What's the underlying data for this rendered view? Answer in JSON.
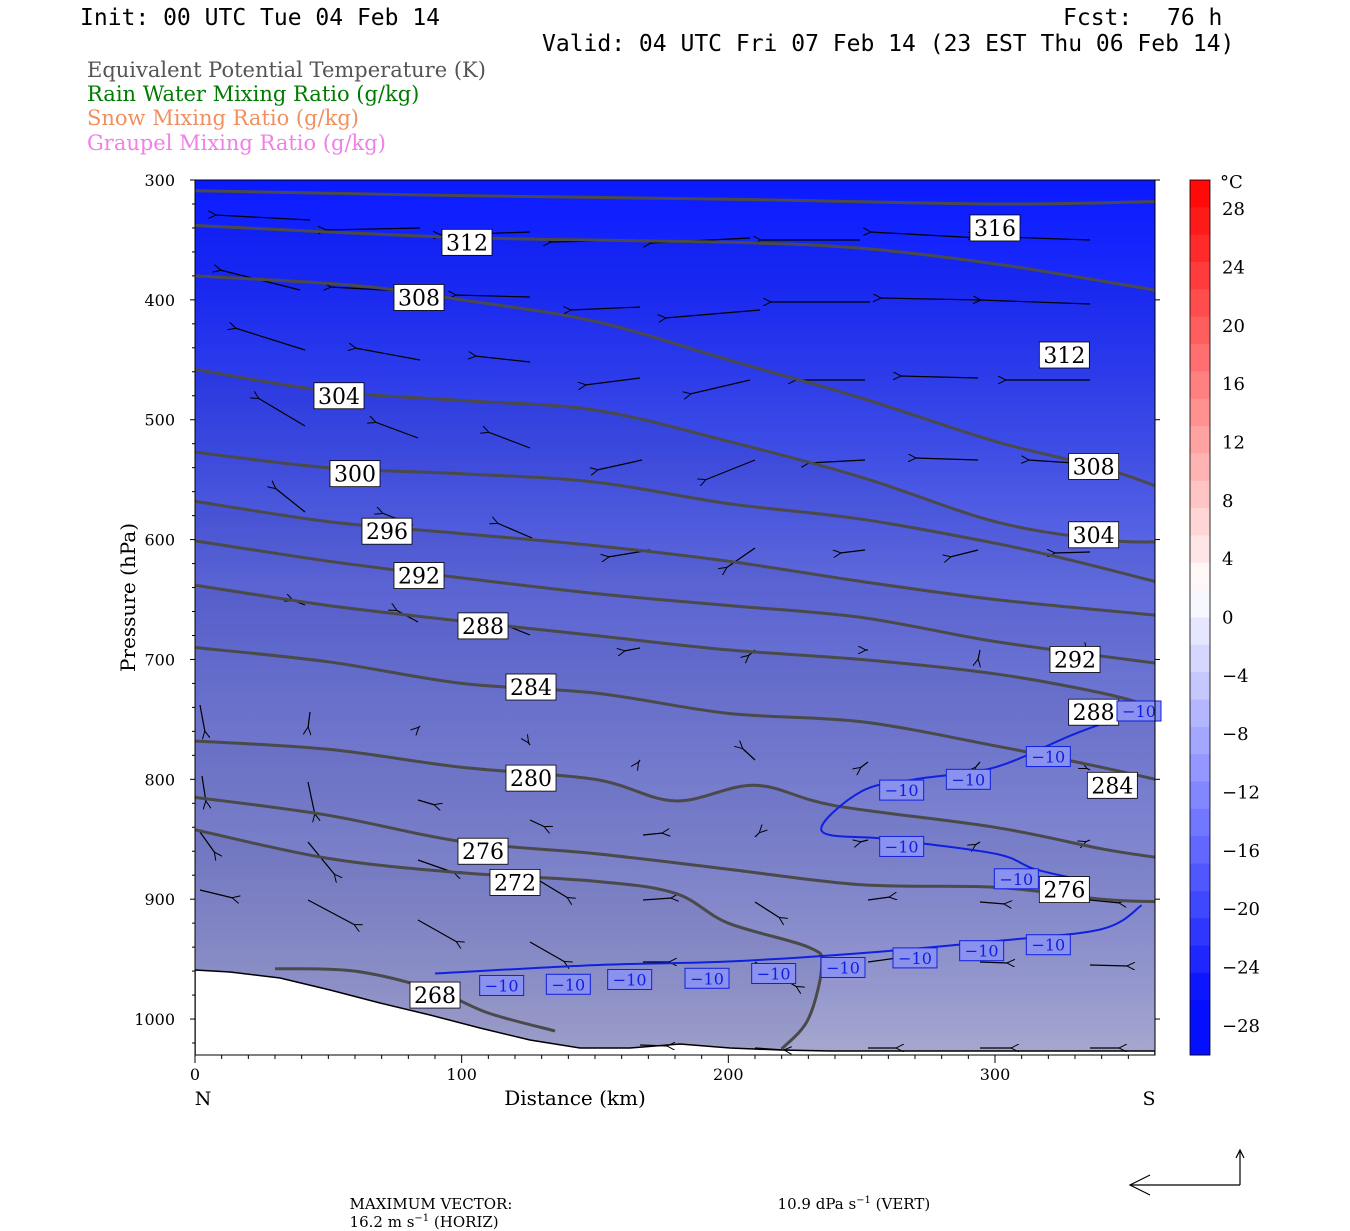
{
  "header": {
    "init": "Init: 00 UTC Tue 04 Feb 14",
    "fcst_label": "Fcst:",
    "fcst_value": "76 h",
    "valid": "Valid: 04 UTC Fri 07 Feb 14 (23 EST Thu 06 Feb 14)"
  },
  "legend": [
    {
      "label": "Equivalent Potential Temperature (K)",
      "color": "#555555"
    },
    {
      "label": "Rain Water Mixing Ratio (g/kg)",
      "color": "#007a00"
    },
    {
      "label": "Snow Mixing Ratio (g/kg)",
      "color": "#f09060"
    },
    {
      "label": "Graupel Mixing Ratio (g/kg)",
      "color": "#f080e8"
    }
  ],
  "chart_data": {
    "type": "cross-section",
    "xlabel": "Distance (km)",
    "ylabel": "Pressure (hPa)",
    "x_ticks": [
      0,
      100,
      200,
      300
    ],
    "y_ticks": [
      300,
      400,
      500,
      600,
      700,
      800,
      900,
      1000
    ],
    "xlim": [
      0,
      360
    ],
    "ylim": [
      300,
      1030
    ],
    "left_end_label": "N",
    "right_end_label": "S",
    "colorbar": {
      "unit": "°C",
      "labels": [
        "28",
        "24",
        "20",
        "16",
        "12",
        "8",
        "4",
        "0",
        "−4",
        "−8",
        "−12",
        "−16",
        "−20",
        "−24",
        "−28"
      ]
    },
    "theta_e_contours": [
      {
        "level": 316,
        "points": [
          [
            0,
            309
          ],
          [
            100,
            313
          ],
          [
            200,
            316
          ],
          [
            300,
            320
          ],
          [
            360,
            318
          ]
        ]
      },
      {
        "level": 312,
        "points": [
          [
            0,
            338
          ],
          [
            100,
            348
          ],
          [
            200,
            352
          ],
          [
            250,
            357
          ],
          [
            300,
            370
          ],
          [
            350,
            388
          ],
          [
            360,
            392
          ]
        ]
      },
      {
        "level": 308,
        "points": [
          [
            0,
            380
          ],
          [
            60,
            388
          ],
          [
            100,
            400
          ],
          [
            150,
            418
          ],
          [
            200,
            450
          ],
          [
            250,
            482
          ],
          [
            300,
            518
          ],
          [
            340,
            540
          ],
          [
            360,
            555
          ]
        ]
      },
      {
        "level": 304,
        "points": [
          [
            0,
            458
          ],
          [
            50,
            476
          ],
          [
            100,
            484
          ],
          [
            150,
            492
          ],
          [
            200,
            518
          ],
          [
            250,
            548
          ],
          [
            300,
            585
          ],
          [
            340,
            600
          ],
          [
            360,
            602
          ]
        ]
      },
      {
        "level": 300,
        "points": [
          [
            0,
            527
          ],
          [
            50,
            540
          ],
          [
            100,
            545
          ],
          [
            150,
            552
          ],
          [
            200,
            570
          ],
          [
            250,
            583
          ],
          [
            300,
            603
          ],
          [
            330,
            618
          ],
          [
            360,
            635
          ]
        ]
      },
      {
        "level": 296,
        "points": [
          [
            0,
            568
          ],
          [
            50,
            585
          ],
          [
            100,
            595
          ],
          [
            150,
            605
          ],
          [
            200,
            618
          ],
          [
            250,
            635
          ],
          [
            300,
            650
          ],
          [
            360,
            663
          ]
        ]
      },
      {
        "level": 292,
        "points": [
          [
            0,
            601
          ],
          [
            50,
            618
          ],
          [
            100,
            632
          ],
          [
            150,
            645
          ],
          [
            200,
            655
          ],
          [
            250,
            665
          ],
          [
            300,
            685
          ],
          [
            360,
            703
          ]
        ]
      },
      {
        "level": 288,
        "points": [
          [
            0,
            638
          ],
          [
            50,
            655
          ],
          [
            100,
            668
          ],
          [
            150,
            680
          ],
          [
            200,
            692
          ],
          [
            250,
            700
          ],
          [
            300,
            712
          ],
          [
            340,
            728
          ],
          [
            360,
            740
          ]
        ]
      },
      {
        "level": 284,
        "points": [
          [
            0,
            690
          ],
          [
            50,
            702
          ],
          [
            100,
            720
          ],
          [
            150,
            728
          ],
          [
            200,
            745
          ],
          [
            250,
            752
          ],
          [
            300,
            772
          ],
          [
            340,
            790
          ],
          [
            360,
            800
          ]
        ]
      },
      {
        "level": 280,
        "points": [
          [
            0,
            768
          ],
          [
            50,
            775
          ],
          [
            100,
            790
          ],
          [
            150,
            800
          ],
          [
            180,
            818
          ],
          [
            210,
            805
          ],
          [
            240,
            822
          ],
          [
            300,
            840
          ],
          [
            340,
            858
          ],
          [
            360,
            865
          ]
        ]
      },
      {
        "level": 276,
        "points": [
          [
            0,
            815
          ],
          [
            50,
            830
          ],
          [
            100,
            852
          ],
          [
            150,
            862
          ],
          [
            200,
            875
          ],
          [
            250,
            888
          ],
          [
            300,
            890
          ],
          [
            340,
            900
          ],
          [
            360,
            902
          ]
        ]
      },
      {
        "level": 272,
        "points": [
          [
            0,
            842
          ],
          [
            50,
            866
          ],
          [
            100,
            878
          ],
          [
            150,
            885
          ],
          [
            180,
            895
          ],
          [
            200,
            920
          ],
          [
            230,
            940
          ],
          [
            235,
            955
          ],
          [
            230,
            1000
          ],
          [
            220,
            1025
          ]
        ]
      },
      {
        "level": 268,
        "points": [
          [
            30,
            958
          ],
          [
            60,
            960
          ],
          [
            90,
            976
          ],
          [
            110,
            995
          ],
          [
            135,
            1010
          ]
        ]
      }
    ],
    "temp_minus10_contour_lower": [
      [
        90,
        962
      ],
      [
        150,
        955
      ],
      [
        200,
        952
      ],
      [
        250,
        945
      ],
      [
        300,
        935
      ],
      [
        340,
        925
      ],
      [
        355,
        905
      ]
    ],
    "temp_minus10_contour_upper": [
      [
        360,
        738
      ],
      [
        330,
        762
      ],
      [
        300,
        790
      ],
      [
        270,
        800
      ],
      [
        250,
        810
      ],
      [
        235,
        843
      ],
      [
        260,
        850
      ],
      [
        300,
        862
      ],
      [
        315,
        875
      ],
      [
        335,
        885
      ]
    ],
    "theta_e_labels": [
      {
        "text": "312",
        "x": 102,
        "p": 352
      },
      {
        "text": "316",
        "x": 300,
        "p": 340
      },
      {
        "text": "308",
        "x": 84,
        "p": 398
      },
      {
        "text": "312",
        "x": 326,
        "p": 446
      },
      {
        "text": "304",
        "x": 54,
        "p": 480
      },
      {
        "text": "300",
        "x": 60,
        "p": 545
      },
      {
        "text": "308",
        "x": 337,
        "p": 539
      },
      {
        "text": "296",
        "x": 72,
        "p": 593
      },
      {
        "text": "304",
        "x": 337,
        "p": 596
      },
      {
        "text": "292",
        "x": 84,
        "p": 630
      },
      {
        "text": "288",
        "x": 108,
        "p": 672
      },
      {
        "text": "292",
        "x": 330,
        "p": 700
      },
      {
        "text": "284",
        "x": 126,
        "p": 723
      },
      {
        "text": "288",
        "x": 337,
        "p": 744
      },
      {
        "text": "280",
        "x": 126,
        "p": 799
      },
      {
        "text": "284",
        "x": 344,
        "p": 805
      },
      {
        "text": "276",
        "x": 108,
        "p": 860
      },
      {
        "text": "272",
        "x": 120,
        "p": 886
      },
      {
        "text": "276",
        "x": 326,
        "p": 892
      },
      {
        "text": "268",
        "x": 90,
        "p": 980
      }
    ],
    "temp_labels": [
      {
        "text": "−10",
        "x": 354,
        "p": 743
      },
      {
        "text": "−10",
        "x": 320,
        "p": 781
      },
      {
        "text": "−10",
        "x": 290,
        "p": 800
      },
      {
        "text": "−10",
        "x": 265,
        "p": 809
      },
      {
        "text": "−10",
        "x": 265,
        "p": 856
      },
      {
        "text": "−10",
        "x": 308,
        "p": 883
      },
      {
        "text": "−10",
        "x": 320,
        "p": 938
      },
      {
        "text": "−10",
        "x": 295,
        "p": 943
      },
      {
        "text": "−10",
        "x": 270,
        "p": 949
      },
      {
        "text": "−10",
        "x": 243,
        "p": 957
      },
      {
        "text": "−10",
        "x": 217,
        "p": 962
      },
      {
        "text": "−10",
        "x": 192,
        "p": 966
      },
      {
        "text": "−10",
        "x": 163,
        "p": 967
      },
      {
        "text": "−10",
        "x": 140,
        "p": 971
      },
      {
        "text": "−10",
        "x": 115,
        "p": 972
      }
    ],
    "max_vector": {
      "label": "MAXIMUM VECTOR:",
      "horiz": "16.2 m s",
      "horiz_sup": "−1",
      "horiz_suffix": " (HORIZ)",
      "vert": "10.9 dPa s",
      "vert_sup": "−1",
      "vert_suffix": " (VERT)"
    }
  }
}
